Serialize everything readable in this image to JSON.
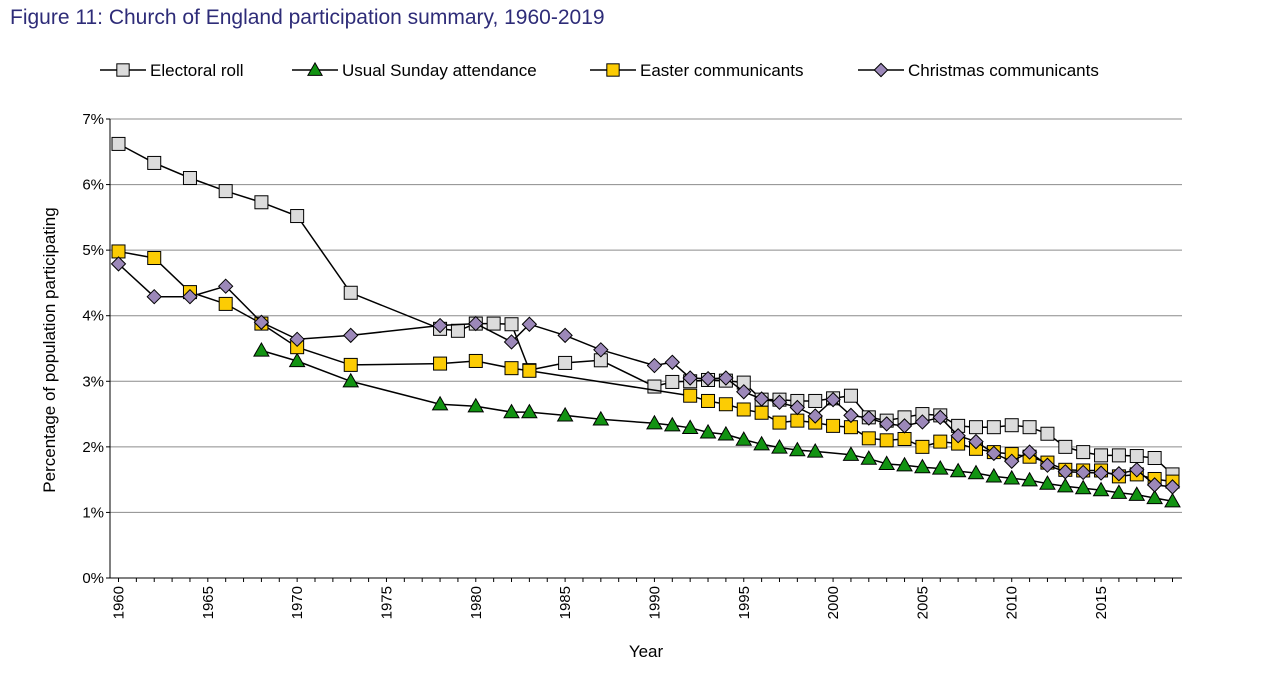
{
  "title": "Figure 11: Church of England participation summary, 1960-2019",
  "chart_data": {
    "type": "line",
    "title": "Figure 11: Church of England participation summary, 1960-2019",
    "xlabel": "Year",
    "ylabel": "Percentage of population participating",
    "xlim": [
      1960,
      2019
    ],
    "ylim": [
      0,
      7
    ],
    "x_ticks": [
      1960,
      1965,
      1970,
      1975,
      1980,
      1985,
      1990,
      1995,
      2000,
      2005,
      2010,
      2015
    ],
    "y_ticks": [
      0,
      1,
      2,
      3,
      4,
      5,
      6,
      7
    ],
    "y_tick_labels": [
      "0%",
      "1%",
      "2%",
      "3%",
      "4%",
      "5%",
      "6%",
      "7%"
    ],
    "grid": "horizontal",
    "legend": "top",
    "series": [
      {
        "name": "Electoral roll",
        "marker": "square",
        "fill": "#dcdcdc",
        "x": [
          1960,
          1962,
          1964,
          1966,
          1968,
          1970,
          1973,
          1978,
          1979,
          1980,
          1981,
          1982,
          1983,
          1985,
          1987,
          1990,
          1991,
          1992,
          1993,
          1994,
          1995,
          1996,
          1997,
          1998,
          1999,
          2000,
          2001,
          2002,
          2003,
          2004,
          2005,
          2006,
          2007,
          2008,
          2009,
          2010,
          2011,
          2012,
          2013,
          2014,
          2015,
          2016,
          2017,
          2018,
          2019
        ],
        "values": [
          6.62,
          6.33,
          6.1,
          5.9,
          5.73,
          5.52,
          4.35,
          3.8,
          3.77,
          3.88,
          3.88,
          3.87,
          3.17,
          3.28,
          3.32,
          2.92,
          2.99,
          3.0,
          3.02,
          3.01,
          2.98,
          2.72,
          2.72,
          2.7,
          2.7,
          2.74,
          2.78,
          2.45,
          2.4,
          2.45,
          2.5,
          2.48,
          2.32,
          2.3,
          2.3,
          2.33,
          2.3,
          2.2,
          2.0,
          1.92,
          1.87,
          1.87,
          1.86,
          1.83,
          1.58
        ]
      },
      {
        "name": "Usual Sunday attendance",
        "marker": "triangle",
        "fill": "#129312",
        "x": [
          1968,
          1970,
          1973,
          1978,
          1980,
          1982,
          1983,
          1985,
          1987,
          1990,
          1991,
          1992,
          1993,
          1994,
          1995,
          1996,
          1997,
          1998,
          1999,
          2001,
          2002,
          2003,
          2004,
          2005,
          2006,
          2007,
          2008,
          2009,
          2010,
          2011,
          2012,
          2013,
          2014,
          2015,
          2016,
          2017,
          2018,
          2019
        ],
        "values": [
          3.47,
          3.31,
          3.0,
          2.65,
          2.62,
          2.53,
          2.53,
          2.48,
          2.42,
          2.36,
          2.33,
          2.29,
          2.22,
          2.19,
          2.11,
          2.04,
          1.99,
          1.95,
          1.93,
          1.88,
          1.82,
          1.74,
          1.72,
          1.69,
          1.67,
          1.63,
          1.6,
          1.55,
          1.52,
          1.49,
          1.44,
          1.4,
          1.37,
          1.34,
          1.3,
          1.27,
          1.22,
          1.17
        ]
      },
      {
        "name": "Easter communicants",
        "marker": "square",
        "fill": "#fccc04",
        "x": [
          1960,
          1962,
          1964,
          1966,
          1968,
          1970,
          1973,
          1978,
          1980,
          1982,
          1983,
          1992,
          1993,
          1994,
          1995,
          1996,
          1997,
          1998,
          1999,
          2000,
          2001,
          2002,
          2003,
          2004,
          2005,
          2006,
          2007,
          2008,
          2009,
          2010,
          2011,
          2012,
          2013,
          2014,
          2015,
          2016,
          2017,
          2018,
          2019
        ],
        "values": [
          4.98,
          4.88,
          4.36,
          4.18,
          3.88,
          3.52,
          3.25,
          3.27,
          3.31,
          3.2,
          3.16,
          2.78,
          2.7,
          2.65,
          2.57,
          2.52,
          2.37,
          2.4,
          2.37,
          2.32,
          2.3,
          2.13,
          2.1,
          2.12,
          2.0,
          2.08,
          2.05,
          1.97,
          1.92,
          1.89,
          1.85,
          1.76,
          1.65,
          1.64,
          1.64,
          1.55,
          1.58,
          1.51,
          1.47
        ]
      },
      {
        "name": "Christmas communicants",
        "marker": "diamond",
        "fill": "#9c88b9",
        "x": [
          1960,
          1962,
          1964,
          1966,
          1968,
          1970,
          1973,
          1978,
          1980,
          1982,
          1983,
          1985,
          1987,
          1990,
          1991,
          1992,
          1993,
          1994,
          1995,
          1996,
          1997,
          1998,
          1999,
          2000,
          2001,
          2002,
          2003,
          2004,
          2005,
          2006,
          2007,
          2008,
          2009,
          2010,
          2011,
          2012,
          2013,
          2014,
          2015,
          2016,
          2017,
          2018,
          2019
        ],
        "values": [
          4.79,
          4.29,
          4.29,
          4.45,
          3.9,
          3.64,
          3.7,
          3.85,
          3.88,
          3.6,
          3.87,
          3.7,
          3.48,
          3.24,
          3.29,
          3.05,
          3.04,
          3.05,
          2.84,
          2.73,
          2.68,
          2.6,
          2.47,
          2.72,
          2.48,
          2.44,
          2.35,
          2.32,
          2.38,
          2.45,
          2.17,
          2.08,
          1.9,
          1.78,
          1.92,
          1.72,
          1.62,
          1.61,
          1.6,
          1.59,
          1.65,
          1.42,
          1.39
        ]
      }
    ]
  }
}
